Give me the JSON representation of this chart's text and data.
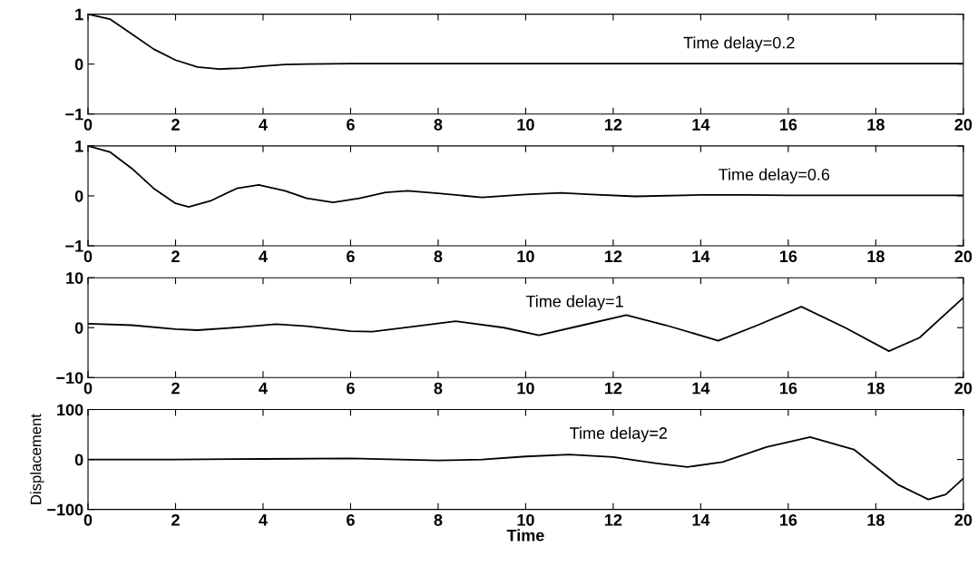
{
  "chart_data": [
    {
      "type": "line",
      "annotations": [
        "Time delay=0.2"
      ],
      "xlim": [
        0,
        20
      ],
      "xticks": [
        0,
        2,
        4,
        6,
        8,
        10,
        12,
        14,
        16,
        18,
        20
      ],
      "ylim": [
        -1,
        1
      ],
      "yticks": [
        -1,
        0,
        1
      ],
      "series": [
        {
          "color": "#000000",
          "x": [
            0,
            0.5,
            1,
            1.5,
            2,
            2.5,
            3,
            3.5,
            4,
            4.5,
            5,
            6,
            8,
            10,
            14,
            20
          ],
          "values": [
            1,
            0.9,
            0.6,
            0.3,
            0.08,
            -0.06,
            -0.1,
            -0.08,
            -0.04,
            -0.01,
            0,
            0.01,
            0.01,
            0.01,
            0.01,
            0.01
          ]
        }
      ]
    },
    {
      "type": "line",
      "annotations": [
        "Time delay=0.6"
      ],
      "xlim": [
        0,
        20
      ],
      "xticks": [
        0,
        2,
        4,
        6,
        8,
        10,
        12,
        14,
        16,
        18,
        20
      ],
      "ylim": [
        -1,
        1
      ],
      "yticks": [
        -1,
        0,
        1
      ],
      "series": [
        {
          "color": "#000000",
          "x": [
            0,
            0.5,
            1,
            1.5,
            2,
            2.3,
            2.8,
            3.4,
            3.9,
            4.5,
            5,
            5.6,
            6.2,
            6.8,
            7.3,
            8,
            9,
            10,
            10.8,
            11.5,
            12.5,
            14,
            15,
            16,
            20
          ],
          "values": [
            1,
            0.88,
            0.55,
            0.15,
            -0.15,
            -0.22,
            -0.1,
            0.15,
            0.22,
            0.1,
            -0.05,
            -0.13,
            -0.05,
            0.07,
            0.1,
            0.05,
            -0.03,
            0.03,
            0.06,
            0.03,
            -0.01,
            0.02,
            0.02,
            0.01,
            0.01
          ]
        }
      ]
    },
    {
      "type": "line",
      "annotations": [
        "Time delay=1"
      ],
      "xlim": [
        0,
        20
      ],
      "xticks": [
        0,
        2,
        4,
        6,
        8,
        10,
        12,
        14,
        16,
        18,
        20
      ],
      "ylim": [
        -10,
        10
      ],
      "yticks": [
        -10,
        0,
        10
      ],
      "series": [
        {
          "color": "#000000",
          "x": [
            0,
            1,
            2,
            2.5,
            3.5,
            4.3,
            5,
            6,
            6.5,
            7.5,
            8.4,
            9.5,
            10.3,
            11.3,
            12.3,
            13.2,
            14.4,
            15.3,
            16.3,
            17.3,
            18.3,
            19,
            20
          ],
          "values": [
            0.8,
            0.5,
            -0.3,
            -0.5,
            0.1,
            0.7,
            0.3,
            -0.7,
            -0.8,
            0.3,
            1.3,
            0,
            -1.5,
            0.5,
            2.5,
            0.5,
            -2.6,
            0.5,
            4.2,
            0,
            -4.7,
            -2,
            6
          ]
        }
      ]
    },
    {
      "type": "line",
      "annotations": [
        "Time delay=2"
      ],
      "xlabel": "Time",
      "ylabel": "Displacement",
      "xlim": [
        0,
        20
      ],
      "xticks": [
        0,
        2,
        4,
        6,
        8,
        10,
        12,
        14,
        16,
        18,
        20
      ],
      "ylim": [
        -100,
        100
      ],
      "yticks": [
        -100,
        0,
        100
      ],
      "series": [
        {
          "color": "#000000",
          "x": [
            0,
            2,
            4,
            6,
            8,
            9,
            10,
            11,
            12,
            13,
            13.7,
            14.5,
            15.5,
            16.5,
            17.5,
            18.5,
            19.2,
            19.6,
            20
          ],
          "values": [
            0,
            0,
            1,
            2,
            -2,
            0,
            6,
            10,
            5,
            -8,
            -15,
            -5,
            25,
            45,
            20,
            -50,
            -80,
            -70,
            -38
          ]
        }
      ]
    }
  ]
}
